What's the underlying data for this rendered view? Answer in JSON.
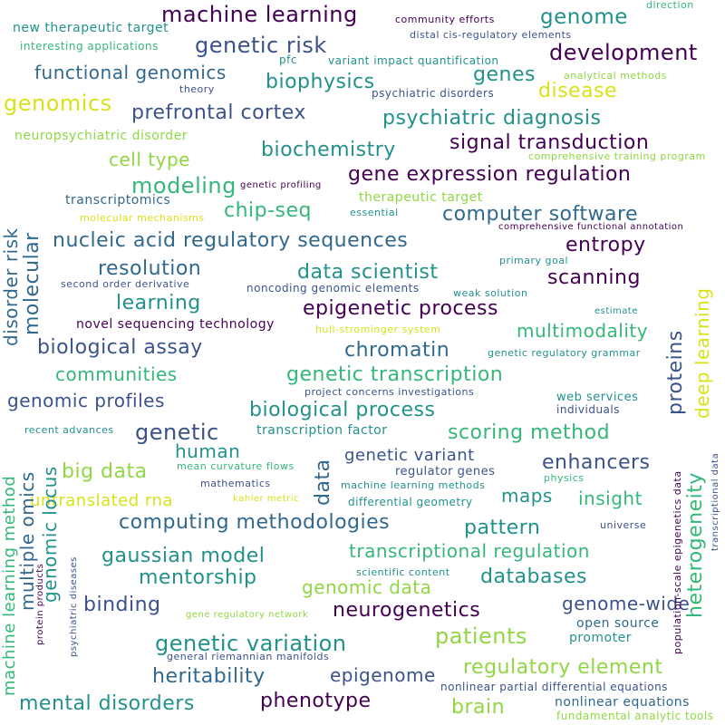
{
  "palette": {
    "purple": "#440154",
    "indigo": "#3b528b",
    "blue": "#31688e",
    "teal": "#21918c",
    "green": "#35b779",
    "lime": "#90d743",
    "yellow": "#d8e219"
  },
  "words": [
    "machine learning",
    "genome",
    "genetic risk",
    "development",
    "new therapeutic target",
    "interesting applications",
    "community efforts",
    "distal cis-regulatory elements",
    "direction",
    "functional genomics",
    "genes",
    "biophysics",
    "disease",
    "genomics",
    "prefrontal cortex",
    "psychiatric diagnosis",
    "signal transduction",
    "biochemistry",
    "neuropsychiatric disorder",
    "cell type",
    "gene expression regulation",
    "modeling",
    "chip-seq",
    "computer software",
    "nucleic acid regulatory sequences",
    "entropy",
    "resolution",
    "data scientist",
    "scanning",
    "learning",
    "epigenetic process",
    "multimodality",
    "biological assay",
    "chromatin",
    "communities",
    "genetic transcription",
    "genomic profiles",
    "biological process",
    "genetic",
    "scoring method",
    "human",
    "big data",
    "genetic variant",
    "enhancers",
    "untranslated rna",
    "maps",
    "insight",
    "computing methodologies",
    "pattern",
    "gaussian model",
    "transcriptional regulation",
    "mentorship",
    "databases",
    "genomic data",
    "binding",
    "neurogenetics",
    "genome-wide",
    "patients",
    "genetic variation",
    "regulatory element",
    "heritability",
    "epigenome",
    "mental disorders",
    "phenotype",
    "brain",
    "nonlinear equations",
    "fundamental analytic tools",
    "nonlinear partial differential equations",
    "open source",
    "promoter",
    "transcriptomics",
    "molecular mechanisms",
    "therapeutic target",
    "essential",
    "comprehensive functional annotation",
    "primary goal",
    "second order derivative",
    "noncoding genomic elements",
    "weak solution",
    "estimate",
    "novel sequencing technology",
    "hull-strominger system",
    "genetic regulatory grammar",
    "project concerns investigations",
    "web services",
    "individuals",
    "recent advances",
    "transcription factor",
    "regulator genes",
    "mean curvature flows",
    "mathematics",
    "machine learning methods",
    "physics",
    "differential geometry",
    "kahler metric",
    "universe",
    "scientific content",
    "gene regulatory network",
    "general riemannian manifolds",
    "genetic profiling",
    "analytical methods",
    "psychiatric disorders",
    "pfc",
    "variant impact quantification",
    "theory",
    "comprehensive training program",
    "disorder risk",
    "molecular",
    "machine learning method",
    "multiple omics",
    "genomic locus",
    "protein products",
    "psychiatric diseases",
    "data",
    "proteins",
    "heterogeneity",
    "deep learning",
    "population-scale epigenetics data",
    "transcriptional data"
  ]
}
